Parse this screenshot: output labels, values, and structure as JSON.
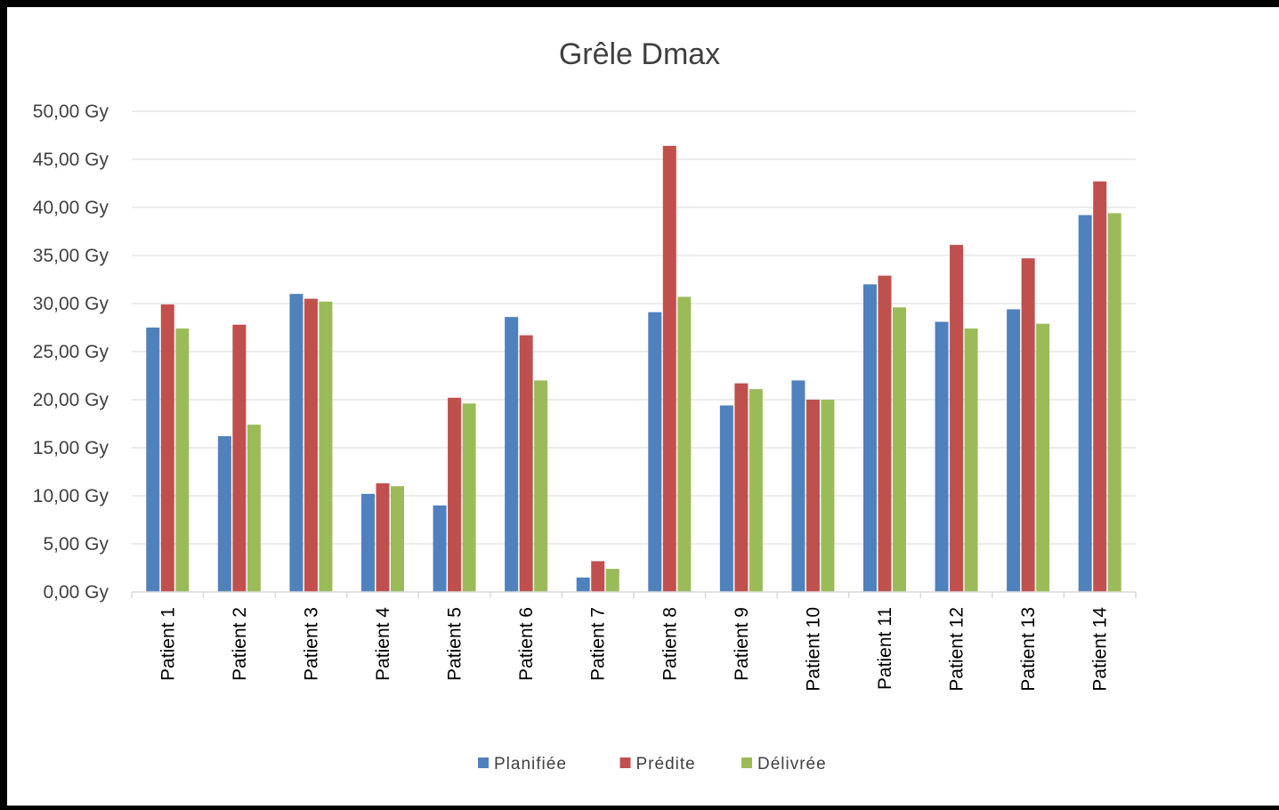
{
  "chart_data": {
    "type": "bar",
    "title": "Grêle Dmax",
    "xlabel": "",
    "ylabel": "",
    "ylim": [
      0,
      50
    ],
    "y_tick_step": 5,
    "y_tick_labels": [
      "0,00 Gy",
      "5,00 Gy",
      "10,00 Gy",
      "15,00 Gy",
      "20,00 Gy",
      "25,00 Gy",
      "30,00 Gy",
      "35,00 Gy",
      "40,00 Gy",
      "45,00 Gy",
      "50,00 Gy"
    ],
    "grid": true,
    "legend_position": "bottom",
    "categories": [
      "Patient 1",
      "Patient 2",
      "Patient 3",
      "Patient 4",
      "Patient 5",
      "Patient 6",
      "Patient 7",
      "Patient 8",
      "Patient 9",
      "Patient 10",
      "Patient 11",
      "Patient 12",
      "Patient 13",
      "Patient 14"
    ],
    "series": [
      {
        "name": "Planifiée",
        "color": "#4F81BD",
        "values": [
          27.5,
          16.2,
          31.0,
          10.2,
          9.0,
          28.6,
          1.5,
          29.1,
          19.4,
          22.0,
          32.0,
          28.1,
          29.4,
          39.2
        ]
      },
      {
        "name": "Prédite",
        "color": "#C0504D",
        "values": [
          29.9,
          27.8,
          30.5,
          11.3,
          20.2,
          26.7,
          3.2,
          46.4,
          21.7,
          20.0,
          32.9,
          36.1,
          34.7,
          42.7
        ]
      },
      {
        "name": "Délivrée",
        "color": "#9BBB59",
        "values": [
          27.4,
          17.4,
          30.2,
          11.0,
          19.6,
          22.0,
          2.4,
          30.7,
          21.1,
          20.0,
          29.6,
          27.4,
          27.9,
          39.4
        ]
      }
    ]
  }
}
